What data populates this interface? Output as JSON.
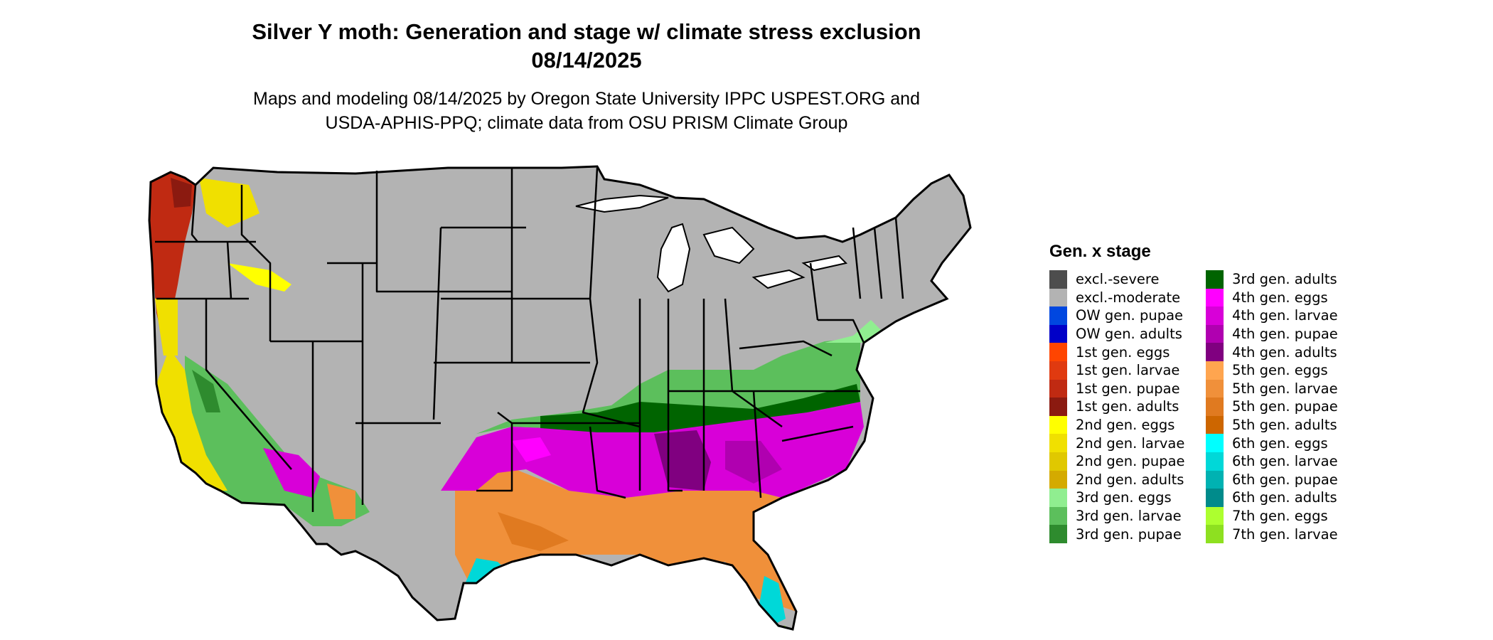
{
  "title_line1": "Silver Y moth: Generation and stage w/ climate stress exclusion",
  "title_line2": "08/14/2025",
  "subtitle_line1": "Maps and modeling 08/14/2025 by Oregon State University IPPC USPEST.ORG and",
  "subtitle_line2": "USDA-APHIS-PPQ; climate data from OSU PRISM Climate Group",
  "legend": {
    "title": "Gen. x stage",
    "items": [
      {
        "label": "excl.-severe",
        "color": "#4d4d4d"
      },
      {
        "label": "excl.-moderate",
        "color": "#b3b3b3"
      },
      {
        "label": "OW gen. pupae",
        "color": "#0047e0"
      },
      {
        "label": "OW gen. adults",
        "color": "#0000c8"
      },
      {
        "label": "1st gen. eggs",
        "color": "#ff4500"
      },
      {
        "label": "1st gen. larvae",
        "color": "#e03a10"
      },
      {
        "label": "1st gen. pupae",
        "color": "#c02a12"
      },
      {
        "label": "1st gen. adults",
        "color": "#8b1a10"
      },
      {
        "label": "2nd gen. eggs",
        "color": "#ffff00"
      },
      {
        "label": "2nd gen. larvae",
        "color": "#f0e000"
      },
      {
        "label": "2nd gen. pupae",
        "color": "#e0c800"
      },
      {
        "label": "2nd gen. adults",
        "color": "#d4aa00"
      },
      {
        "label": "3rd gen. eggs",
        "color": "#90ee90"
      },
      {
        "label": "3rd gen. larvae",
        "color": "#5cbf5c"
      },
      {
        "label": "3rd gen. pupae",
        "color": "#2e8b2e"
      },
      {
        "label": "3rd gen. adults",
        "color": "#006400"
      },
      {
        "label": "4th gen. eggs",
        "color": "#ff00ff"
      },
      {
        "label": "4th gen. larvae",
        "color": "#d800d8"
      },
      {
        "label": "4th gen. pupae",
        "color": "#b000b0"
      },
      {
        "label": "4th gen. adults",
        "color": "#800080"
      },
      {
        "label": "5th gen. eggs",
        "color": "#ffa54f"
      },
      {
        "label": "5th gen. larvae",
        "color": "#f0903a"
      },
      {
        "label": "5th gen. pupae",
        "color": "#e07a20"
      },
      {
        "label": "5th gen. adults",
        "color": "#cd6600"
      },
      {
        "label": "6th gen. eggs",
        "color": "#00ffff"
      },
      {
        "label": "6th gen. larvae",
        "color": "#00d8d8"
      },
      {
        "label": "6th gen. pupae",
        "color": "#00b2b2"
      },
      {
        "label": "6th gen. adults",
        "color": "#008b8b"
      },
      {
        "label": "7th gen. eggs",
        "color": "#adff2f"
      },
      {
        "label": "7th gen. larvae",
        "color": "#8ee020"
      }
    ]
  }
}
